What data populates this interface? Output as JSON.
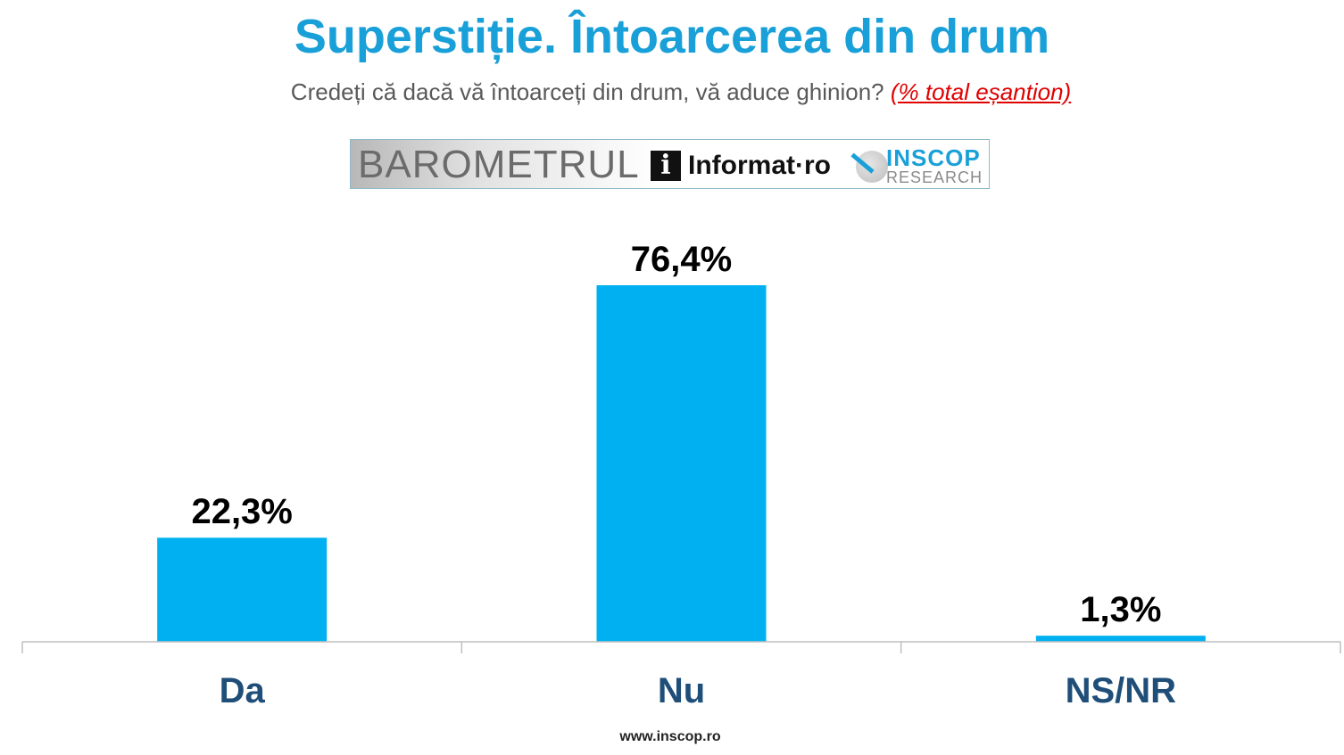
{
  "chart_data": {
    "type": "bar",
    "title": "Superstiție. Întoarcerea din drum",
    "subtitle": "Credeți că dacă vă întoarceți din drum, vă aduce ghinion?",
    "subtitle_note": "(% total eșantion)",
    "categories": [
      "Da",
      "Nu",
      "NS/NR"
    ],
    "values": [
      22.3,
      76.4,
      1.3
    ],
    "data_labels": [
      "22,3%",
      "76,4%",
      "1,3%"
    ],
    "unit": "%",
    "ylim": [
      0,
      100
    ],
    "grid": false,
    "legend": "none",
    "colors": {
      "bar": "#00b0f0",
      "title": "#1aa0d8",
      "category_label": "#1f4e79",
      "axis": "#bfbfbf"
    }
  },
  "banner": {
    "barometru": "BAROMETRUL",
    "informat_icon": "i",
    "informat": "Informat·ro",
    "inscop": "INSCOP",
    "inscop_sub": "RESEARCH"
  },
  "footer": "www.inscop.ro"
}
